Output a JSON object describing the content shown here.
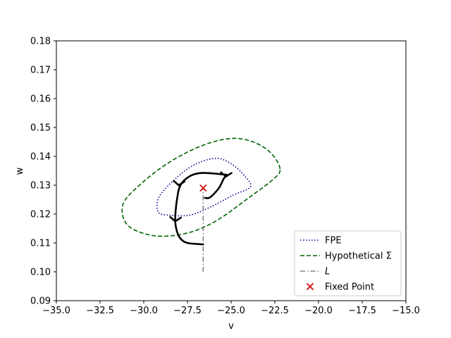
{
  "chart_data": {
    "type": "line",
    "xlabel": "v",
    "ylabel": "w",
    "xlim": [
      -35,
      -15
    ],
    "ylim": [
      0.09,
      0.18
    ],
    "xticks": [
      "−35.0",
      "−32.5",
      "−30.0",
      "−27.5",
      "−25.0",
      "−22.5",
      "−20.0",
      "−17.5",
      "−15.0"
    ],
    "xtick_values": [
      -35,
      -32.5,
      -30,
      -27.5,
      -25,
      -22.5,
      -20,
      -17.5,
      -15
    ],
    "yticks": [
      "0.09",
      "0.10",
      "0.11",
      "0.12",
      "0.13",
      "0.14",
      "0.15",
      "0.16",
      "0.17",
      "0.18"
    ],
    "ytick_values": [
      0.09,
      0.1,
      0.11,
      0.12,
      0.13,
      0.14,
      0.15,
      0.16,
      0.17,
      0.18
    ],
    "grid": false,
    "legend_position": "bottom-right",
    "colors": {
      "fpe": "#00008b",
      "hypothetical": "#006400",
      "L": "#808080",
      "fixed_point": "#d62728",
      "trajectory": "#000000"
    },
    "series": [
      {
        "name": "FPE",
        "style": "dotted",
        "points": [
          [
            -23.9,
            0.1294
          ],
          [
            -24.2,
            0.133
          ],
          [
            -24.9,
            0.137
          ],
          [
            -25.8,
            0.1393
          ],
          [
            -27.0,
            0.1374
          ],
          [
            -28.1,
            0.1327
          ],
          [
            -29.1,
            0.1262
          ],
          [
            -29.2,
            0.121
          ],
          [
            -28.7,
            0.1197
          ],
          [
            -27.4,
            0.1196
          ],
          [
            -26.2,
            0.1224
          ],
          [
            -24.9,
            0.1265
          ],
          [
            -23.9,
            0.1294
          ]
        ]
      },
      {
        "name": "Hypothetical Σ",
        "style": "dashed",
        "points": [
          [
            -22.2,
            0.1356
          ],
          [
            -22.7,
            0.141
          ],
          [
            -23.7,
            0.1449
          ],
          [
            -25.0,
            0.1462
          ],
          [
            -26.7,
            0.1436
          ],
          [
            -28.6,
            0.1377
          ],
          [
            -30.3,
            0.1297
          ],
          [
            -31.2,
            0.1231
          ],
          [
            -30.9,
            0.116
          ],
          [
            -29.4,
            0.1125
          ],
          [
            -27.6,
            0.1133
          ],
          [
            -25.9,
            0.1175
          ],
          [
            -24.0,
            0.1256
          ],
          [
            -22.6,
            0.132
          ],
          [
            -22.2,
            0.1356
          ]
        ]
      },
      {
        "name": "L",
        "style": "dashdot",
        "points": [
          [
            -26.6,
            0.1
          ],
          [
            -26.6,
            0.129
          ]
        ]
      },
      {
        "name": "Fixed Point",
        "style": "marker-x",
        "points": [
          [
            -26.6,
            0.129
          ]
        ]
      }
    ],
    "trajectory": [
      [
        -26.6,
        0.1095
      ],
      [
        -27.5,
        0.11
      ],
      [
        -27.9,
        0.1115
      ],
      [
        -28.1,
        0.114
      ],
      [
        -28.2,
        0.118
      ],
      [
        -28.1,
        0.125
      ],
      [
        -27.9,
        0.13
      ],
      [
        -27.4,
        0.133
      ],
      [
        -26.8,
        0.1342
      ],
      [
        -26.1,
        0.1341
      ],
      [
        -25.6,
        0.1338
      ],
      [
        -25.2,
        0.1335
      ],
      [
        -25.4,
        0.1325
      ],
      [
        -25.7,
        0.129
      ],
      [
        -26.2,
        0.1258
      ],
      [
        -26.5,
        0.1256
      ]
    ],
    "trajectory_arrows": [
      [
        -28.0,
        0.13
      ],
      [
        -25.3,
        0.133
      ],
      [
        -28.2,
        0.1175
      ]
    ]
  }
}
